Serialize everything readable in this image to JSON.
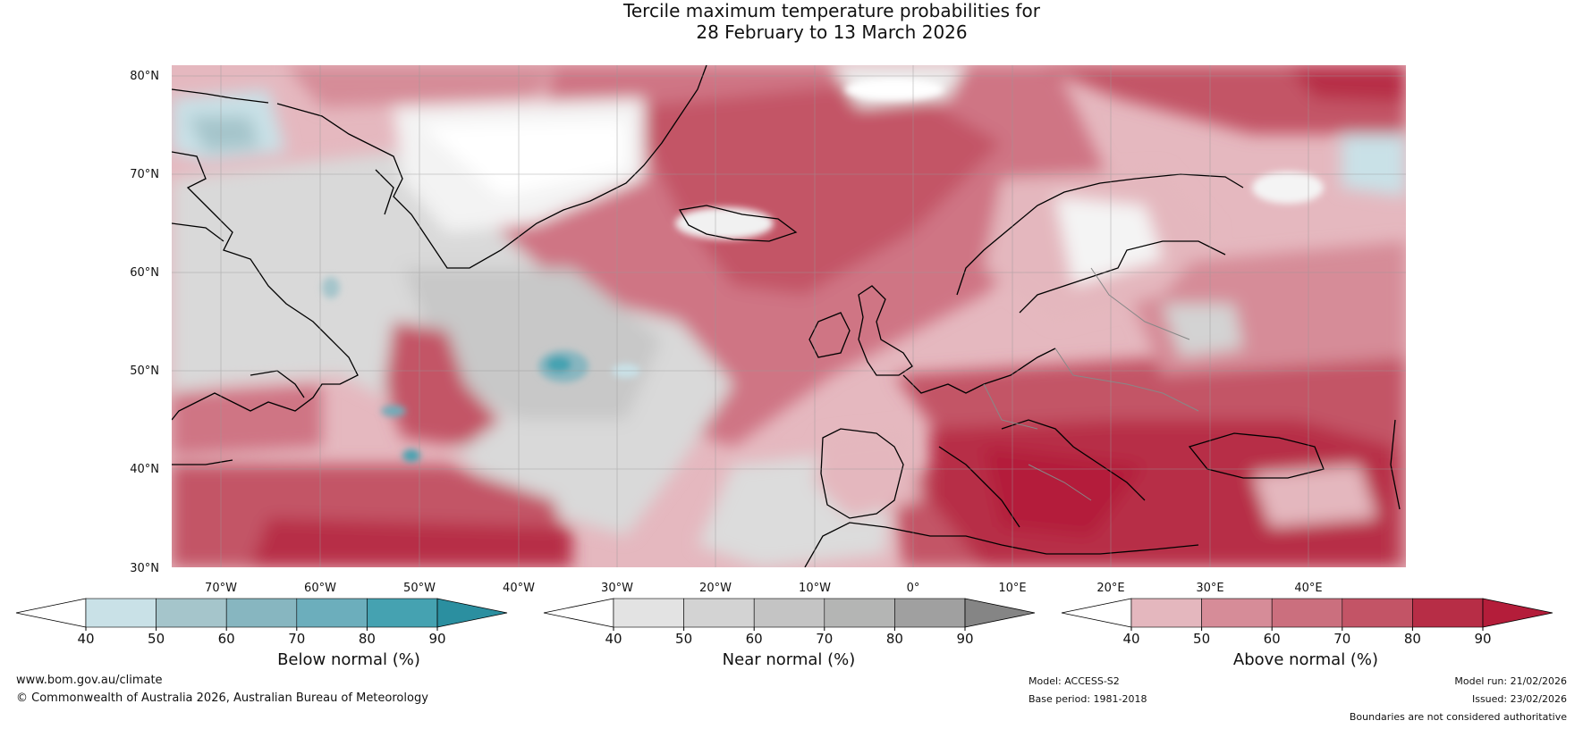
{
  "title": {
    "line1": "Tercile maximum temperature probabilities for",
    "line2": "28 February to 13 March 2026"
  },
  "map": {
    "lat_labels": [
      "80°N",
      "70°N",
      "60°N",
      "50°N",
      "40°N",
      "30°N"
    ],
    "lon_labels": [
      "70°W",
      "60°W",
      "50°W",
      "40°W",
      "30°W",
      "20°W",
      "10°W",
      "0°",
      "10°E",
      "20°E",
      "30°E",
      "40°E"
    ]
  },
  "colorbars": [
    {
      "title": "Below normal (%)",
      "ticks": [
        "40",
        "50",
        "60",
        "70",
        "80",
        "90"
      ],
      "colors": [
        "#ffffff",
        "#c9e1e7",
        "#a5c5cb",
        "#87b6c0",
        "#6caebc",
        "#45a2b1",
        "#2b8fa0"
      ]
    },
    {
      "title": "Near normal (%)",
      "ticks": [
        "40",
        "50",
        "60",
        "70",
        "80",
        "90"
      ],
      "colors": [
        "#ffffff",
        "#e3e3e3",
        "#d3d3d3",
        "#c4c4c4",
        "#b4b5b4",
        "#a0a0a0",
        "#858585"
      ]
    },
    {
      "title": "Above normal (%)",
      "ticks": [
        "40",
        "50",
        "60",
        "70",
        "80",
        "90"
      ],
      "colors": [
        "#ffffff",
        "#e4b7be",
        "#d68c98",
        "#cb6f7e",
        "#c35466",
        "#b72d46",
        "#b41d3a"
      ]
    }
  ],
  "footer": {
    "website": "www.bom.gov.au/climate",
    "copyright": "© Commonwealth of Australia 2026, Australian Bureau of Meteorology",
    "model": "Model: ACCESS-S2",
    "base_period": "Base period: 1981-2018",
    "model_run": "Model run: 21/02/2026",
    "issued": "Issued: 23/02/2026",
    "disclaimer": "Boundaries are not considered authoritative"
  }
}
